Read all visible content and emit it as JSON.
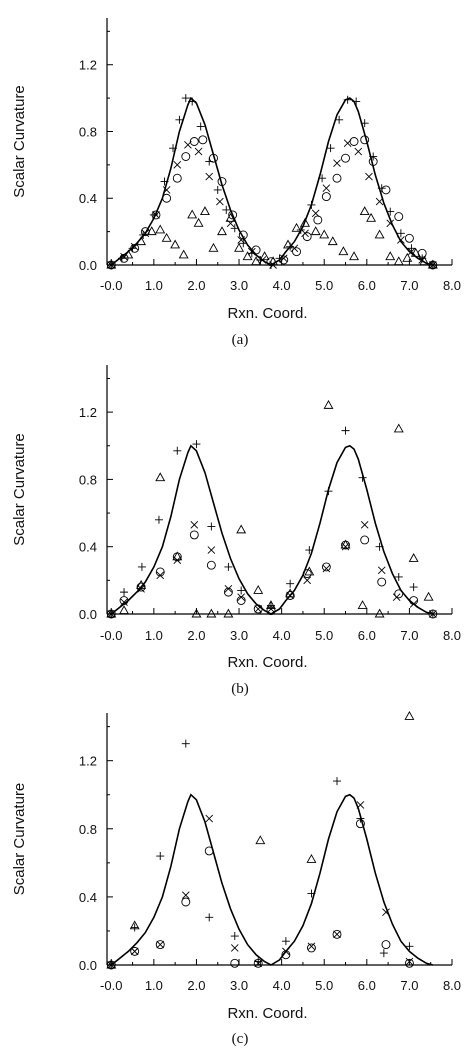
{
  "chart_data": [
    {
      "type": "scatter",
      "caption": "(a)",
      "xlabel": "Rxn. Coord.",
      "ylabel": "Scalar Curvature",
      "xlim": [
        -0.1,
        8.0
      ],
      "ylim": [
        0,
        1.48
      ],
      "xticks": [
        "-0.0",
        "1.0",
        "2.0",
        "3.0",
        "4.0",
        "5.0",
        "6.0",
        "7.0",
        "8.0"
      ],
      "yticks": [
        "0.0",
        "0.4",
        "0.8",
        "1.2"
      ],
      "series": [
        {
          "marker": "line",
          "x": [
            0.0,
            0.2,
            0.4,
            0.6,
            0.8,
            1.0,
            1.2,
            1.4,
            1.6,
            1.8,
            1.87,
            2.0,
            2.2,
            2.4,
            2.6,
            2.8,
            3.0,
            3.2,
            3.4,
            3.6,
            3.75,
            3.95,
            4.1,
            4.3,
            4.5,
            4.7,
            4.9,
            5.1,
            5.3,
            5.5,
            5.6,
            5.7,
            5.8,
            6.0,
            6.2,
            6.4,
            6.6,
            6.8,
            7.0,
            7.2,
            7.4,
            7.55
          ],
          "y": [
            0.0,
            0.04,
            0.08,
            0.13,
            0.19,
            0.28,
            0.4,
            0.58,
            0.8,
            0.96,
            1.0,
            0.97,
            0.84,
            0.66,
            0.48,
            0.33,
            0.21,
            0.12,
            0.06,
            0.02,
            0.0,
            0.03,
            0.08,
            0.14,
            0.23,
            0.36,
            0.54,
            0.74,
            0.9,
            0.99,
            1.0,
            0.98,
            0.92,
            0.74,
            0.54,
            0.37,
            0.24,
            0.14,
            0.08,
            0.04,
            0.01,
            0.0
          ]
        },
        {
          "marker": "plus",
          "x": [
            0.0,
            0.25,
            0.5,
            0.75,
            1.0,
            1.25,
            1.45,
            1.6,
            1.75,
            1.9,
            2.1,
            2.3,
            2.5,
            2.7,
            2.9,
            3.1,
            3.3,
            3.5,
            3.75,
            3.95,
            4.2,
            4.45,
            4.7,
            4.95,
            5.15,
            5.35,
            5.55,
            5.75,
            5.95,
            6.15,
            6.35,
            6.55,
            6.8,
            7.05,
            7.3,
            7.55
          ],
          "y": [
            0.0,
            0.04,
            0.1,
            0.18,
            0.3,
            0.5,
            0.7,
            0.87,
            1.0,
            0.98,
            0.83,
            0.62,
            0.45,
            0.33,
            0.22,
            0.13,
            0.07,
            0.03,
            0.0,
            0.04,
            0.11,
            0.21,
            0.36,
            0.52,
            0.7,
            0.87,
            0.99,
            0.98,
            0.85,
            0.65,
            0.46,
            0.32,
            0.19,
            0.1,
            0.04,
            0.0
          ]
        },
        {
          "marker": "cross",
          "x": [
            0.0,
            0.3,
            0.55,
            0.8,
            1.05,
            1.3,
            1.55,
            1.8,
            2.05,
            2.3,
            2.55,
            2.8,
            3.05,
            3.3,
            3.55,
            3.8,
            4.05,
            4.3,
            4.55,
            4.8,
            5.05,
            5.3,
            5.55,
            5.8,
            6.05,
            6.3,
            6.55,
            6.8,
            7.05,
            7.3,
            7.55
          ],
          "y": [
            0.0,
            0.05,
            0.11,
            0.19,
            0.3,
            0.45,
            0.6,
            0.72,
            0.68,
            0.53,
            0.38,
            0.25,
            0.15,
            0.08,
            0.03,
            0.0,
            0.04,
            0.1,
            0.19,
            0.31,
            0.46,
            0.61,
            0.73,
            0.68,
            0.53,
            0.38,
            0.25,
            0.15,
            0.08,
            0.03,
            0.0
          ]
        },
        {
          "marker": "circle",
          "x": [
            0.0,
            0.3,
            0.55,
            0.8,
            1.05,
            1.3,
            1.55,
            1.75,
            1.95,
            2.15,
            2.4,
            2.6,
            2.85,
            3.1,
            3.4,
            3.75,
            4.05,
            4.35,
            4.6,
            4.85,
            5.05,
            5.3,
            5.5,
            5.7,
            5.95,
            6.15,
            6.45,
            6.75,
            7.0,
            7.3,
            7.55
          ],
          "y": [
            0.0,
            0.04,
            0.1,
            0.2,
            0.3,
            0.4,
            0.52,
            0.65,
            0.74,
            0.75,
            0.64,
            0.5,
            0.3,
            0.18,
            0.09,
            0.02,
            0.03,
            0.08,
            0.17,
            0.27,
            0.41,
            0.52,
            0.64,
            0.74,
            0.75,
            0.62,
            0.45,
            0.29,
            0.16,
            0.07,
            0.0
          ]
        },
        {
          "marker": "triangle",
          "x": [
            0.0,
            0.4,
            0.7,
            0.95,
            1.15,
            1.3,
            1.5,
            1.7,
            1.9,
            2.05,
            2.2,
            2.4,
            2.6,
            2.8,
            3.0,
            3.2,
            3.4,
            3.6,
            3.8,
            4.15,
            4.35,
            4.55,
            4.8,
            5.0,
            5.2,
            5.45,
            5.7,
            5.95,
            6.1,
            6.3,
            6.55,
            6.75,
            6.95,
            7.15,
            7.35,
            7.55
          ],
          "y": [
            0.0,
            0.06,
            0.14,
            0.2,
            0.21,
            0.16,
            0.12,
            0.06,
            0.3,
            0.25,
            0.32,
            0.1,
            0.2,
            0.28,
            0.1,
            0.05,
            0.02,
            0.05,
            0.02,
            0.12,
            0.22,
            0.25,
            0.2,
            0.18,
            0.14,
            0.08,
            0.05,
            0.32,
            0.28,
            0.18,
            0.05,
            0.02,
            0.04,
            0.07,
            0.02,
            0.0
          ]
        }
      ]
    },
    {
      "type": "scatter",
      "caption": "(b)",
      "xlabel": "Rxn. Coord.",
      "ylabel": "Scalar Curvature",
      "xlim": [
        -0.1,
        8.0
      ],
      "ylim": [
        0,
        1.48
      ],
      "xticks": [
        "-0.0",
        "1.0",
        "2.0",
        "3.0",
        "4.0",
        "5.0",
        "6.0",
        "7.0",
        "8.0"
      ],
      "yticks": [
        "0.0",
        "0.4",
        "0.8",
        "1.2"
      ],
      "series": [
        {
          "marker": "line",
          "x": [
            0.0,
            0.2,
            0.4,
            0.6,
            0.8,
            1.0,
            1.2,
            1.4,
            1.6,
            1.8,
            1.87,
            2.0,
            2.2,
            2.4,
            2.6,
            2.8,
            3.0,
            3.2,
            3.4,
            3.6,
            3.75,
            3.95,
            4.1,
            4.3,
            4.5,
            4.7,
            4.9,
            5.1,
            5.3,
            5.5,
            5.6,
            5.7,
            5.8,
            6.0,
            6.2,
            6.4,
            6.6,
            6.8,
            7.0,
            7.2,
            7.4,
            7.55
          ],
          "y": [
            0.0,
            0.04,
            0.08,
            0.13,
            0.19,
            0.28,
            0.4,
            0.58,
            0.8,
            0.96,
            1.0,
            0.97,
            0.84,
            0.66,
            0.48,
            0.33,
            0.21,
            0.12,
            0.06,
            0.02,
            0.0,
            0.03,
            0.08,
            0.14,
            0.23,
            0.36,
            0.54,
            0.74,
            0.9,
            0.99,
            1.0,
            0.98,
            0.92,
            0.74,
            0.54,
            0.37,
            0.24,
            0.14,
            0.08,
            0.04,
            0.01,
            0.0
          ]
        },
        {
          "marker": "plus",
          "x": [
            0.0,
            0.3,
            0.72,
            1.12,
            1.55,
            2.0,
            2.35,
            2.75,
            3.05,
            3.75,
            4.2,
            4.65,
            5.1,
            5.5,
            5.9,
            6.3,
            6.75,
            7.1,
            7.55
          ],
          "y": [
            0.0,
            0.13,
            0.28,
            0.56,
            0.97,
            1.01,
            0.52,
            0.28,
            0.14,
            0.05,
            0.18,
            0.38,
            0.73,
            1.09,
            0.81,
            0.4,
            0.22,
            0.16,
            0.0
          ]
        },
        {
          "marker": "cross",
          "x": [
            0.0,
            0.3,
            0.7,
            1.15,
            1.55,
            1.95,
            2.35,
            2.75,
            3.05,
            3.45,
            3.75,
            4.2,
            4.6,
            5.05,
            5.5,
            5.95,
            6.35,
            6.7,
            7.1,
            7.55
          ],
          "y": [
            0.0,
            0.07,
            0.15,
            0.23,
            0.32,
            0.53,
            0.38,
            0.15,
            0.1,
            0.03,
            0.03,
            0.11,
            0.2,
            0.27,
            0.4,
            0.53,
            0.26,
            0.1,
            0.06,
            0.0
          ]
        },
        {
          "marker": "circle",
          "x": [
            0.0,
            0.3,
            0.7,
            1.15,
            1.55,
            1.95,
            2.35,
            2.75,
            3.05,
            3.45,
            3.75,
            4.2,
            4.6,
            5.05,
            5.5,
            5.95,
            6.35,
            6.75,
            7.1,
            7.55
          ],
          "y": [
            0.0,
            0.08,
            0.16,
            0.25,
            0.34,
            0.47,
            0.29,
            0.13,
            0.08,
            0.03,
            0.02,
            0.11,
            0.24,
            0.28,
            0.41,
            0.44,
            0.19,
            0.12,
            0.08,
            0.0
          ]
        },
        {
          "marker": "triangle",
          "x": [
            0.0,
            0.3,
            0.7,
            1.15,
            1.55,
            2.0,
            2.35,
            2.75,
            3.05,
            3.45,
            3.75,
            4.2,
            4.65,
            5.1,
            5.5,
            5.9,
            6.3,
            6.75,
            7.1,
            7.45
          ],
          "y": [
            0.0,
            0.02,
            0.17,
            0.81,
            0.34,
            0.0,
            0.0,
            0.0,
            0.5,
            0.14,
            0.05,
            0.12,
            0.25,
            1.24,
            0.41,
            0.05,
            0.0,
            1.1,
            0.33,
            0.1
          ]
        }
      ]
    },
    {
      "type": "scatter",
      "caption": "(c)",
      "xlabel": "Rxn. Coord.",
      "ylabel": "Scalar Curvature",
      "xlim": [
        -0.1,
        8.0
      ],
      "ylim": [
        0,
        1.48
      ],
      "xticks": [
        "-0.0",
        "1.0",
        "2.0",
        "3.0",
        "4.0",
        "5.0",
        "6.0",
        "7.0",
        "8.0"
      ],
      "yticks": [
        "0.0",
        "0.4",
        "0.8",
        "1.2"
      ],
      "series": [
        {
          "marker": "line",
          "x": [
            0.0,
            0.2,
            0.4,
            0.6,
            0.8,
            1.0,
            1.2,
            1.4,
            1.6,
            1.8,
            1.87,
            2.0,
            2.2,
            2.4,
            2.6,
            2.8,
            3.0,
            3.2,
            3.4,
            3.6,
            3.75,
            3.95,
            4.1,
            4.3,
            4.5,
            4.7,
            4.9,
            5.1,
            5.3,
            5.5,
            5.6,
            5.7,
            5.8,
            6.0,
            6.2,
            6.4,
            6.6,
            6.8,
            7.0,
            7.2,
            7.4,
            7.55
          ],
          "y": [
            0.0,
            0.04,
            0.08,
            0.13,
            0.19,
            0.28,
            0.4,
            0.58,
            0.8,
            0.96,
            1.0,
            0.97,
            0.84,
            0.66,
            0.48,
            0.33,
            0.21,
            0.12,
            0.06,
            0.02,
            0.0,
            0.03,
            0.08,
            0.14,
            0.23,
            0.36,
            0.54,
            0.74,
            0.9,
            0.99,
            1.0,
            0.98,
            0.92,
            0.74,
            0.54,
            0.37,
            0.24,
            0.14,
            0.08,
            0.04,
            0.01,
            0.0
          ]
        },
        {
          "marker": "plus",
          "x": [
            0.0,
            0.55,
            1.15,
            1.75,
            2.3,
            2.9,
            3.45,
            4.1,
            4.7,
            5.3,
            5.85,
            6.4,
            7.0
          ],
          "y": [
            0.0,
            0.22,
            0.64,
            1.3,
            0.28,
            0.17,
            0.02,
            0.14,
            0.42,
            1.08,
            0.86,
            0.07,
            0.11
          ]
        },
        {
          "marker": "cross",
          "x": [
            0.0,
            0.55,
            1.15,
            1.75,
            2.3,
            2.9,
            3.45,
            4.1,
            4.7,
            5.3,
            5.85,
            6.45,
            7.0
          ],
          "y": [
            0.0,
            0.08,
            0.12,
            0.41,
            0.86,
            0.1,
            0.01,
            0.08,
            0.11,
            0.18,
            0.94,
            0.31,
            0.02
          ]
        },
        {
          "marker": "circle",
          "x": [
            0.0,
            0.55,
            1.15,
            1.75,
            2.3,
            2.9,
            3.45,
            4.1,
            4.7,
            5.3,
            5.85,
            6.45,
            7.0
          ],
          "y": [
            0.0,
            0.08,
            0.12,
            0.37,
            0.67,
            0.01,
            0.01,
            0.06,
            0.1,
            0.18,
            0.83,
            0.12,
            0.01
          ]
        },
        {
          "marker": "triangle",
          "x": [
            0.0,
            0.55,
            3.5,
            4.7,
            7.0
          ],
          "y": [
            0.0,
            0.23,
            0.73,
            0.62,
            1.46
          ]
        }
      ]
    }
  ]
}
